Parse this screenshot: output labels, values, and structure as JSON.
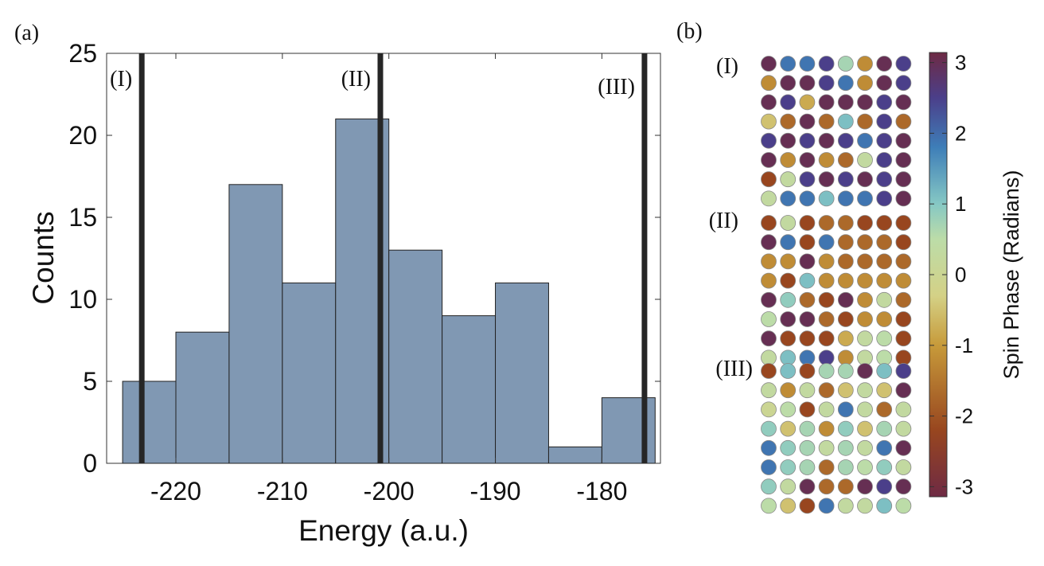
{
  "panel_a": {
    "label": "(a)",
    "marker_labels": [
      "(I)",
      "(II)",
      "(III)"
    ]
  },
  "panel_b": {
    "label": "(b)",
    "grid_labels": [
      "(I)",
      "(II)",
      "(III)"
    ],
    "colorbar": {
      "label": "Spin Phase (Radians)",
      "range": [
        -3.1416,
        3.1416
      ],
      "ticks": [
        3,
        2,
        1,
        0,
        -1,
        -2,
        -3
      ],
      "tick_labels": [
        "3",
        "2",
        "1",
        "0",
        "-1",
        "-2",
        "-3"
      ],
      "colormap": "cyclic twilight-like",
      "colormap_stops": [
        {
          "value": -3.1416,
          "color": "#6e2a44"
        },
        {
          "value": -2.2,
          "color": "#98461f"
        },
        {
          "value": -1.0,
          "color": "#c79a3a"
        },
        {
          "value": -0.3,
          "color": "#d4d186"
        },
        {
          "value": 0.5,
          "color": "#bcdca8"
        },
        {
          "value": 1.0,
          "color": "#86c8c4"
        },
        {
          "value": 1.8,
          "color": "#3e7eb8"
        },
        {
          "value": 2.5,
          "color": "#4b3f8a"
        },
        {
          "value": 3.1416,
          "color": "#6e2a44"
        }
      ]
    },
    "grids": [
      {
        "name": "(I)",
        "phases": [
          [
            3.0,
            1.9,
            1.9,
            2.5,
            0.7,
            -1.2,
            3.0,
            2.5
          ],
          [
            -1.2,
            3.0,
            3.0,
            2.5,
            1.9,
            -1.2,
            3.0,
            2.5
          ],
          [
            3.0,
            2.5,
            -0.8,
            3.0,
            3.0,
            3.0,
            2.5,
            3.0
          ],
          [
            -0.5,
            -1.7,
            3.0,
            -1.7,
            1.1,
            -1.7,
            2.5,
            -1.7
          ],
          [
            2.5,
            3.0,
            2.5,
            3.0,
            2.5,
            1.9,
            2.5,
            3.0
          ],
          [
            3.0,
            -1.2,
            3.0,
            -1.2,
            -1.7,
            0.3,
            2.5,
            3.0
          ],
          [
            -2.2,
            0.3,
            2.5,
            3.0,
            2.5,
            3.0,
            2.5,
            3.0
          ],
          [
            0.3,
            1.9,
            1.9,
            1.1,
            1.9,
            1.9,
            2.5,
            3.0
          ]
        ]
      },
      {
        "name": "(II)",
        "phases": [
          [
            -2.2,
            0.3,
            -2.2,
            -1.7,
            -1.7,
            -2.2,
            -2.2,
            -2.2
          ],
          [
            3.0,
            1.9,
            -2.2,
            1.9,
            -1.7,
            -1.7,
            -1.7,
            -2.2
          ],
          [
            -1.2,
            -1.2,
            3.0,
            -1.2,
            -1.7,
            -1.7,
            -1.7,
            -1.7
          ],
          [
            -1.2,
            -2.2,
            1.1,
            -1.2,
            -1.2,
            -1.2,
            -1.2,
            -1.2
          ],
          [
            3.0,
            0.9,
            -1.7,
            -2.2,
            3.0,
            -1.2,
            0.3,
            -1.7
          ],
          [
            0.5,
            3.0,
            3.0,
            -1.7,
            -2.2,
            -1.2,
            -1.2,
            -2.2
          ],
          [
            3.0,
            -2.2,
            -2.2,
            -2.2,
            -0.8,
            0.3,
            0.5,
            -2.2
          ],
          [
            0.3,
            1.1,
            1.9,
            2.5,
            -1.2,
            0.3,
            0.5,
            -2.2
          ]
        ]
      },
      {
        "name": "(III)",
        "phases": [
          [
            -2.2,
            1.1,
            -2.2,
            0.7,
            0.7,
            3.0,
            1.1,
            2.5
          ],
          [
            0.3,
            -1.2,
            0.3,
            -1.7,
            -0.5,
            0.3,
            -0.5,
            3.0
          ],
          [
            0.0,
            0.5,
            -2.2,
            0.3,
            1.9,
            0.3,
            -1.7,
            0.3
          ],
          [
            0.9,
            -0.5,
            0.7,
            -1.2,
            0.9,
            -0.5,
            0.7,
            0.3
          ],
          [
            1.9,
            0.9,
            0.7,
            0.3,
            0.7,
            0.3,
            1.9,
            3.0
          ],
          [
            1.9,
            0.9,
            0.7,
            -1.7,
            0.7,
            0.5,
            0.9,
            0.3
          ],
          [
            0.9,
            0.3,
            3.0,
            -1.7,
            -1.7,
            3.0,
            2.5,
            3.0
          ],
          [
            0.5,
            -0.5,
            -2.2,
            1.9,
            0.3,
            0.3,
            1.1,
            0.5
          ]
        ]
      }
    ]
  },
  "chart_data": {
    "type": "bar",
    "title": "",
    "xlabel": "Energy (a.u.)",
    "ylabel": "Counts",
    "xlim": [
      -226.5,
      -174.5
    ],
    "ylim": [
      0,
      25
    ],
    "xticks": [
      -220,
      -210,
      -200,
      -190,
      -180
    ],
    "xtick_labels": [
      "-220",
      "-210",
      "-200",
      "-190",
      "-180"
    ],
    "yticks": [
      0,
      5,
      10,
      15,
      20,
      25
    ],
    "ytick_labels": [
      "0",
      "5",
      "10",
      "15",
      "20",
      "25"
    ],
    "grid": false,
    "bin_edges": [
      -225,
      -220,
      -215,
      -210,
      -205,
      -200,
      -195,
      -190,
      -185,
      -180,
      -175
    ],
    "values": [
      5,
      8,
      17,
      11,
      21,
      13,
      9,
      11,
      1,
      4
    ],
    "bar_color": "#8098b3",
    "vertical_lines": [
      {
        "x": -223.2,
        "label": "(I)"
      },
      {
        "x": -200.8,
        "label": "(II)"
      },
      {
        "x": -176.0,
        "label": "(III)"
      }
    ]
  }
}
